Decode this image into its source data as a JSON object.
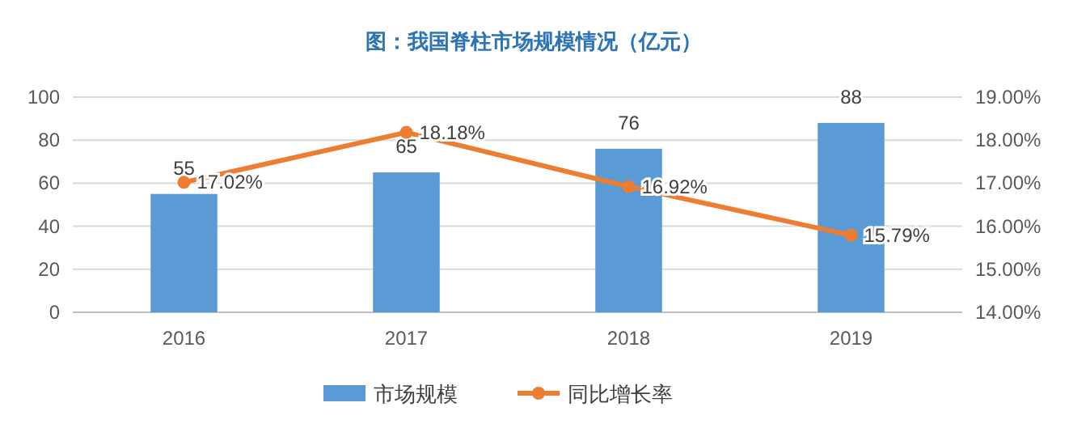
{
  "chart_data": {
    "type": "bar",
    "title": "图：我国脊柱市场规模情况（亿元）",
    "categories": [
      "2016",
      "2017",
      "2018",
      "2019"
    ],
    "series": [
      {
        "name": "市场规模",
        "color": "#5b9bd5",
        "values": [
          55,
          65,
          76,
          88
        ]
      },
      {
        "name": "同比增长率",
        "type": "line",
        "axis": "y2",
        "color": "#ed7d31",
        "values": [
          17.02,
          18.18,
          16.92,
          15.79
        ],
        "value_labels": [
          "17.02%",
          "18.18%",
          "16.92%",
          "15.79%"
        ]
      }
    ],
    "ylim": [
      0,
      100
    ],
    "yticks": [
      0,
      20,
      40,
      60,
      80,
      100
    ],
    "y2lim": [
      14,
      19
    ],
    "y2ticks": [
      {
        "value": 14,
        "label": "14.00%"
      },
      {
        "value": 15,
        "label": "15.00%"
      },
      {
        "value": 16,
        "label": "16.00%"
      },
      {
        "value": 17,
        "label": "17.00%"
      },
      {
        "value": 18,
        "label": "18.00%"
      },
      {
        "value": 19,
        "label": "19.00%"
      }
    ],
    "grid": "y",
    "legend": "bottom",
    "marker": "circle",
    "line_style": "solid",
    "data_labels": true
  }
}
